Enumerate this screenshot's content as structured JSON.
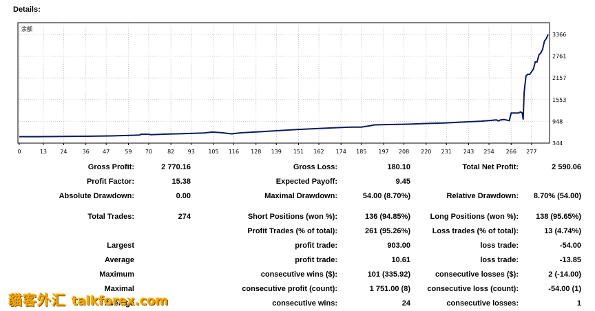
{
  "header": {
    "title": "Details:"
  },
  "chart_data": {
    "type": "line",
    "title": "",
    "corner_label": "余额",
    "xlabel": "",
    "ylabel": "",
    "xlim": [
      0,
      286
    ],
    "ylim": [
      344,
      3366
    ],
    "x_ticks": [
      "0",
      "13",
      "24",
      "36",
      "47",
      "59",
      "70",
      "82",
      "93",
      "105",
      "116",
      "128",
      "139",
      "151",
      "162",
      "174",
      "185",
      "197",
      "208",
      "220",
      "231",
      "243",
      "254",
      "266",
      "277"
    ],
    "y_ticks": [
      "3366",
      "2761",
      "2157",
      "1553",
      "948",
      "344"
    ],
    "grid": true,
    "color": "#0b1a5e",
    "series": [
      {
        "x": [
          0,
          10,
          20,
          30,
          40,
          50,
          60,
          65,
          66,
          70,
          71,
          80,
          90,
          100,
          104,
          105,
          110,
          115,
          116,
          120,
          130,
          140,
          150,
          160,
          170,
          180,
          185,
          190,
          192,
          200,
          210,
          220,
          230,
          240,
          250,
          255,
          258,
          259,
          260,
          262,
          265,
          266,
          270,
          271,
          272,
          272.5,
          273,
          274,
          275,
          276,
          278,
          279,
          280,
          281,
          282,
          283,
          284,
          285,
          286
        ],
        "y": [
          524,
          524,
          528,
          533,
          538,
          544,
          559,
          569,
          590,
          590,
          580,
          595,
          610,
          628,
          650,
          650,
          630,
          600,
          610,
          630,
          660,
          690,
          720,
          745,
          770,
          790,
          790,
          830,
          850,
          860,
          870,
          890,
          905,
          930,
          955,
          975,
          990,
          960,
          985,
          1000,
          970,
          1180,
          1180,
          1210,
          1180,
          1000,
          1750,
          2210,
          2260,
          2250,
          2400,
          2600,
          2600,
          2800,
          2850,
          2950,
          3180,
          3250,
          3366
        ]
      }
    ]
  },
  "stats": {
    "gross_profit": {
      "label": "Gross Profit:",
      "value": "2 770.16"
    },
    "gross_loss": {
      "label": "Gross Loss:",
      "value": "180.10"
    },
    "total_net_profit": {
      "label": "Total Net Profit:",
      "value": "2 590.06"
    },
    "profit_factor": {
      "label": "Profit Factor:",
      "value": "15.38"
    },
    "expected_payoff": {
      "label": "Expected Payoff:",
      "value": "9.45"
    },
    "absolute_drawdown": {
      "label": "Absolute Drawdown:",
      "value": "0.00"
    },
    "maximal_drawdown": {
      "label": "Maximal Drawdown:",
      "value": "54.00 (8.70%)"
    },
    "relative_drawdown": {
      "label": "Relative Drawdown:",
      "value": "8.70% (54.00)"
    },
    "total_trades": {
      "label": "Total Trades:",
      "value": "274"
    },
    "short_positions": {
      "label": "Short Positions (won %):",
      "value": "136 (94.85%)"
    },
    "long_positions": {
      "label": "Long Positions (won %):",
      "value": "138 (95.65%)"
    },
    "profit_trades": {
      "label": "Profit Trades (% of total):",
      "value": "261 (95.26%)"
    },
    "loss_trades": {
      "label": "Loss trades (% of total):",
      "value": "13 (4.74%)"
    },
    "largest": {
      "label": "Largest",
      "profit_label": "profit trade:",
      "profit_value": "903.00",
      "loss_label": "loss trade:",
      "loss_value": "-54.00"
    },
    "average": {
      "label": "Average",
      "profit_label": "profit trade:",
      "profit_value": "10.61",
      "loss_label": "loss trade:",
      "loss_value": "-13.85"
    },
    "maximum": {
      "label": "Maximum",
      "profit_label": "consecutive wins ($):",
      "profit_value": "101 (335.92)",
      "loss_label": "consecutive losses ($):",
      "loss_value": "2 (-14.00)"
    },
    "maximal": {
      "label": "Maximal",
      "profit_label": "consecutive profit (count):",
      "profit_value": "1 751.00 (8)",
      "loss_label": "consecutive loss (count):",
      "loss_value": "-54.00 (1)"
    },
    "average2": {
      "label": "Average",
      "profit_label": "consecutive wins:",
      "profit_value": "24",
      "loss_label": "consecutive losses:",
      "loss_value": "1"
    }
  },
  "watermark": {
    "text": "貓客外汇",
    "domain": "talkforex.com"
  }
}
